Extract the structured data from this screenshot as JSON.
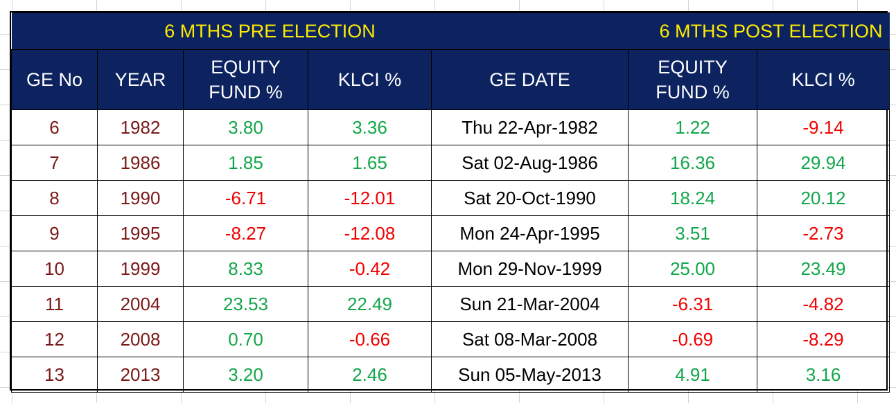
{
  "header": {
    "pre_election": "6 MTHS PRE ELECTION",
    "post_election": "6 MTHS POST ELECTION"
  },
  "columns": {
    "ge_no": "GE No",
    "year": "YEAR",
    "pre_equity_line1": "EQUITY",
    "pre_equity_line2": "FUND %",
    "pre_klci": "KLCI %",
    "ge_date": "GE DATE",
    "post_equity_line1": "EQUITY",
    "post_equity_line2": "FUND %",
    "post_klci": "KLCI %"
  },
  "colors": {
    "header_bg": "#0d2360",
    "header_group_text": "#ffeb00",
    "header_text": "#ffffff",
    "positive": "#12a64a",
    "negative": "#f00000",
    "id_text": "#7a1818"
  },
  "rows": [
    {
      "ge_no": "6",
      "year": "1982",
      "pre_equity": "3.80",
      "pre_klci": "3.36",
      "ge_date": "Thu 22-Apr-1982",
      "post_equity": "1.22",
      "post_klci": "-9.14"
    },
    {
      "ge_no": "7",
      "year": "1986",
      "pre_equity": "1.85",
      "pre_klci": "1.65",
      "ge_date": "Sat 02-Aug-1986",
      "post_equity": "16.36",
      "post_klci": "29.94"
    },
    {
      "ge_no": "8",
      "year": "1990",
      "pre_equity": "-6.71",
      "pre_klci": "-12.01",
      "ge_date": "Sat 20-Oct-1990",
      "post_equity": "18.24",
      "post_klci": "20.12"
    },
    {
      "ge_no": "9",
      "year": "1995",
      "pre_equity": "-8.27",
      "pre_klci": "-12.08",
      "ge_date": "Mon 24-Apr-1995",
      "post_equity": "3.51",
      "post_klci": "-2.73"
    },
    {
      "ge_no": "10",
      "year": "1999",
      "pre_equity": "8.33",
      "pre_klci": "-0.42",
      "ge_date": "Mon 29-Nov-1999",
      "post_equity": "25.00",
      "post_klci": "23.49"
    },
    {
      "ge_no": "11",
      "year": "2004",
      "pre_equity": "23.53",
      "pre_klci": "22.49",
      "ge_date": "Sun 21-Mar-2004",
      "post_equity": "-6.31",
      "post_klci": "-4.82"
    },
    {
      "ge_no": "12",
      "year": "2008",
      "pre_equity": "0.70",
      "pre_klci": "-0.66",
      "ge_date": "Sat 08-Mar-2008",
      "post_equity": "-0.69",
      "post_klci": "-8.29"
    },
    {
      "ge_no": "13",
      "year": "2013",
      "pre_equity": "3.20",
      "pre_klci": "2.46",
      "ge_date": "Sun 05-May-2013",
      "post_equity": "4.91",
      "post_klci": "3.16"
    }
  ]
}
